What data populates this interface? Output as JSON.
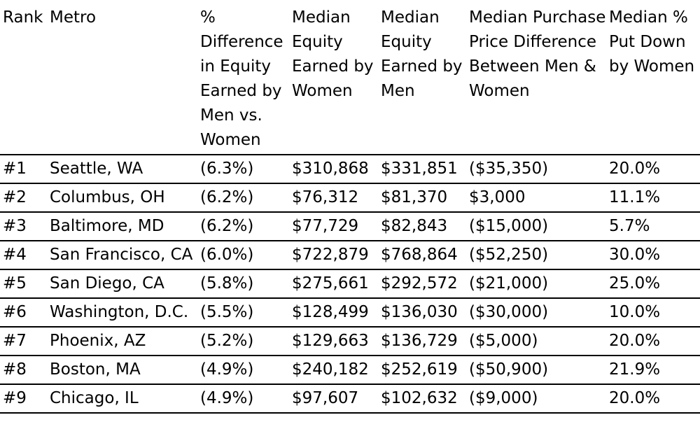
{
  "table": {
    "columns": [
      "Rank",
      "Metro",
      "% Difference in Equity Earned by Men vs. Women",
      "Median Equity Earned by Women",
      "Median Equity Earned by Men",
      "Median Purchase Price Difference Between Men & Women",
      "Median % Put Down by Women"
    ],
    "rows": [
      [
        "#1",
        "Seattle, WA",
        "(6.3%)",
        "$310,868",
        "$331,851",
        "($35,350)",
        "20.0%"
      ],
      [
        "#2",
        "Columbus, OH",
        "(6.2%)",
        "$76,312",
        "$81,370",
        "$3,000",
        "11.1%"
      ],
      [
        "#3",
        "Baltimore, MD",
        "(6.2%)",
        "$77,729",
        "$82,843",
        "($15,000)",
        "5.7%"
      ],
      [
        "#4",
        "San Francisco, CA",
        "(6.0%)",
        "$722,879",
        "$768,864",
        "($52,250)",
        "30.0%"
      ],
      [
        "#5",
        "San Diego, CA",
        "(5.8%)",
        "$275,661",
        "$292,572",
        "($21,000)",
        "25.0%"
      ],
      [
        "#6",
        "Washington, D.C.",
        "(5.5%)",
        "$128,499",
        "$136,030",
        "($30,000)",
        "10.0%"
      ],
      [
        "#7",
        "Phoenix, AZ",
        "(5.2%)",
        "$129,663",
        "$136,729",
        "($5,000)",
        "20.0%"
      ],
      [
        "#8",
        "Boston, MA",
        "(4.9%)",
        "$240,182",
        "$252,619",
        "($50,900)",
        "21.9%"
      ],
      [
        "#9",
        "Chicago, IL",
        "(4.9%)",
        "$97,607",
        "$102,632",
        "($9,000)",
        "20.0%"
      ]
    ]
  }
}
